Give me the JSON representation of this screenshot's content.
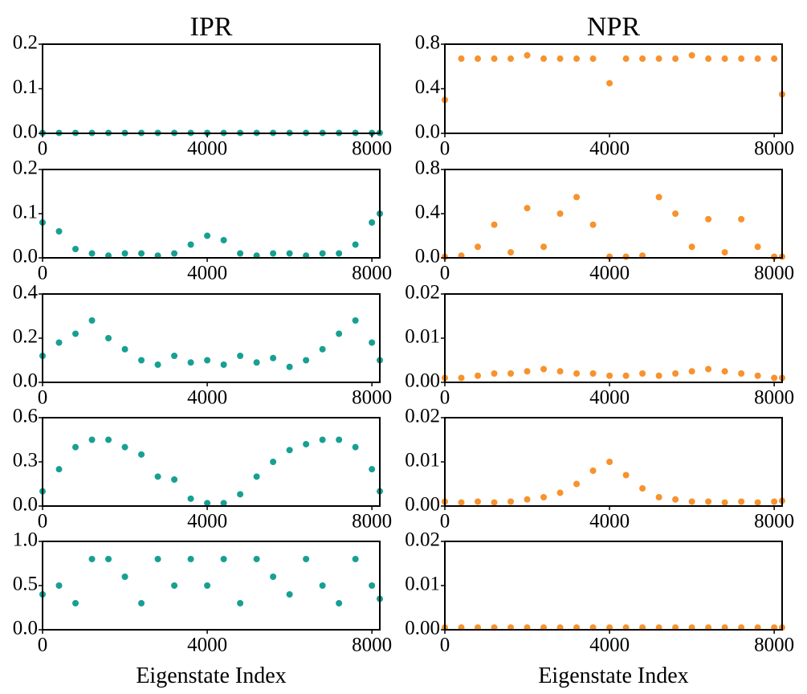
{
  "chart_data": [
    {
      "type": "scatter",
      "title": "IPR",
      "color": "#17a092",
      "xlim": [
        0,
        8192
      ],
      "xticks": [
        0,
        4000,
        8000
      ],
      "ylim": [
        0,
        0.2
      ],
      "yticks": [
        {
          "value": 0,
          "label": "0.0"
        },
        0.1,
        0.2
      ],
      "x": [
        0,
        400,
        800,
        1200,
        1600,
        2000,
        2400,
        2800,
        3200,
        3600,
        4000,
        4400,
        4800,
        5200,
        5600,
        6000,
        6400,
        6800,
        7200,
        7600,
        8000,
        8192
      ],
      "values": [
        0.001,
        0.001,
        0.001,
        0.001,
        0.001,
        0.001,
        0.001,
        0.001,
        0.001,
        0.001,
        0.001,
        0.001,
        0.001,
        0.001,
        0.001,
        0.001,
        0.001,
        0.001,
        0.001,
        0.001,
        0.001,
        0.001
      ]
    },
    {
      "type": "scatter",
      "title": "NPR",
      "color": "#f7922d",
      "xlim": [
        0,
        8192
      ],
      "xticks": [
        0,
        4000,
        8000
      ],
      "ylim": [
        0,
        0.8
      ],
      "yticks": [
        {
          "value": 0,
          "label": "0.0"
        },
        0.4,
        0.8
      ],
      "x": [
        0,
        400,
        800,
        1200,
        1600,
        2000,
        2400,
        2800,
        3200,
        3600,
        4000,
        4400,
        4800,
        5200,
        5600,
        6000,
        6400,
        6800,
        7200,
        7600,
        8000,
        8192
      ],
      "values": [
        0.3,
        0.67,
        0.67,
        0.67,
        0.67,
        0.7,
        0.67,
        0.67,
        0.67,
        0.67,
        0.45,
        0.67,
        0.67,
        0.67,
        0.67,
        0.7,
        0.67,
        0.67,
        0.67,
        0.67,
        0.67,
        0.35
      ]
    },
    {
      "type": "scatter",
      "color": "#17a092",
      "xlim": [
        0,
        8192
      ],
      "xticks": [
        0,
        4000,
        8000
      ],
      "ylim": [
        0,
        0.2
      ],
      "yticks": [
        {
          "value": 0,
          "label": "0.0"
        },
        0.1,
        0.2
      ],
      "x": [
        0,
        400,
        800,
        1200,
        1600,
        2000,
        2400,
        2800,
        3200,
        3600,
        4000,
        4400,
        4800,
        5200,
        5600,
        6000,
        6400,
        6800,
        7200,
        7600,
        8000,
        8192
      ],
      "values": [
        0.08,
        0.06,
        0.02,
        0.01,
        0.005,
        0.01,
        0.01,
        0.005,
        0.01,
        0.03,
        0.05,
        0.04,
        0.01,
        0.005,
        0.01,
        0.01,
        0.005,
        0.01,
        0.01,
        0.03,
        0.08,
        0.1
      ]
    },
    {
      "type": "scatter",
      "color": "#f7922d",
      "xlim": [
        0,
        8192
      ],
      "xticks": [
        0,
        4000,
        8000
      ],
      "ylim": [
        0,
        0.8
      ],
      "yticks": [
        {
          "value": 0,
          "label": "0.0"
        },
        0.4,
        0.8
      ],
      "x": [
        0,
        400,
        800,
        1200,
        1600,
        2000,
        2400,
        2800,
        3200,
        3600,
        4000,
        4400,
        4800,
        5200,
        5600,
        6000,
        6400,
        6800,
        7200,
        7600,
        8000,
        8192
      ],
      "values": [
        0.01,
        0.02,
        0.1,
        0.3,
        0.05,
        0.45,
        0.1,
        0.4,
        0.55,
        0.3,
        0.01,
        0.01,
        0.02,
        0.55,
        0.4,
        0.1,
        0.35,
        0.05,
        0.35,
        0.1,
        0.01,
        0.01
      ]
    },
    {
      "type": "scatter",
      "color": "#17a092",
      "xlim": [
        0,
        8192
      ],
      "xticks": [
        0,
        4000,
        8000
      ],
      "ylim": [
        0,
        0.4
      ],
      "yticks": [
        {
          "value": 0,
          "label": "0.0"
        },
        0.2,
        0.4
      ],
      "x": [
        0,
        400,
        800,
        1200,
        1600,
        2000,
        2400,
        2800,
        3200,
        3600,
        4000,
        4400,
        4800,
        5200,
        5600,
        6000,
        6400,
        6800,
        7200,
        7600,
        8000,
        8192
      ],
      "values": [
        0.12,
        0.18,
        0.22,
        0.28,
        0.2,
        0.15,
        0.1,
        0.08,
        0.12,
        0.09,
        0.1,
        0.08,
        0.12,
        0.09,
        0.11,
        0.07,
        0.1,
        0.15,
        0.22,
        0.28,
        0.18,
        0.1
      ]
    },
    {
      "type": "scatter",
      "color": "#f7922d",
      "xlim": [
        0,
        8192
      ],
      "xticks": [
        0,
        4000,
        8000
      ],
      "ylim": [
        0,
        0.02
      ],
      "yticks": [
        {
          "value": 0,
          "label": "0.00"
        },
        0.01,
        0.02
      ],
      "x": [
        0,
        400,
        800,
        1200,
        1600,
        2000,
        2400,
        2800,
        3200,
        3600,
        4000,
        4400,
        4800,
        5200,
        5600,
        6000,
        6400,
        6800,
        7200,
        7600,
        8000,
        8192
      ],
      "values": [
        0.001,
        0.001,
        0.0015,
        0.002,
        0.002,
        0.0025,
        0.003,
        0.0025,
        0.002,
        0.002,
        0.0015,
        0.0015,
        0.002,
        0.0015,
        0.002,
        0.0025,
        0.003,
        0.0025,
        0.002,
        0.0015,
        0.001,
        0.001
      ]
    },
    {
      "type": "scatter",
      "color": "#17a092",
      "xlim": [
        0,
        8192
      ],
      "xticks": [
        0,
        4000,
        8000
      ],
      "ylim": [
        0,
        0.6
      ],
      "yticks": [
        {
          "value": 0,
          "label": "0.0"
        },
        0.3,
        0.6
      ],
      "x": [
        0,
        400,
        800,
        1200,
        1600,
        2000,
        2400,
        2800,
        3200,
        3600,
        4000,
        4400,
        4800,
        5200,
        5600,
        6000,
        6400,
        6800,
        7200,
        7600,
        8000,
        8192
      ],
      "values": [
        0.1,
        0.25,
        0.4,
        0.45,
        0.45,
        0.4,
        0.35,
        0.2,
        0.18,
        0.05,
        0.02,
        0.02,
        0.08,
        0.2,
        0.3,
        0.38,
        0.42,
        0.45,
        0.45,
        0.4,
        0.25,
        0.1
      ]
    },
    {
      "type": "scatter",
      "color": "#f7922d",
      "xlim": [
        0,
        8192
      ],
      "xticks": [
        0,
        4000,
        8000
      ],
      "ylim": [
        0,
        0.02
      ],
      "yticks": [
        {
          "value": 0,
          "label": "0.00"
        },
        0.01,
        0.02
      ],
      "x": [
        0,
        400,
        800,
        1200,
        1600,
        2000,
        2400,
        2800,
        3200,
        3600,
        4000,
        4400,
        4800,
        5200,
        5600,
        6000,
        6400,
        6800,
        7200,
        7600,
        8000,
        8192
      ],
      "values": [
        0.001,
        0.0008,
        0.001,
        0.0008,
        0.001,
        0.0015,
        0.002,
        0.003,
        0.005,
        0.008,
        0.01,
        0.007,
        0.004,
        0.002,
        0.0015,
        0.001,
        0.001,
        0.0008,
        0.001,
        0.0008,
        0.001,
        0.0012
      ]
    },
    {
      "type": "scatter",
      "xlabel": "Eigenstate Index",
      "color": "#17a092",
      "xlim": [
        0,
        8192
      ],
      "xticks": [
        0,
        4000,
        8000
      ],
      "ylim": [
        0,
        1
      ],
      "yticks": [
        {
          "value": 0,
          "label": "0.0"
        },
        0.5,
        {
          "value": 1,
          "label": "1.0"
        }
      ],
      "x": [
        0,
        400,
        800,
        1200,
        1600,
        2000,
        2400,
        2800,
        3200,
        3600,
        4000,
        4400,
        4800,
        5200,
        5600,
        6000,
        6400,
        6800,
        7200,
        7600,
        8000,
        8192
      ],
      "values": [
        0.4,
        0.5,
        0.3,
        0.8,
        0.8,
        0.6,
        0.3,
        0.8,
        0.5,
        0.8,
        0.5,
        0.8,
        0.3,
        0.8,
        0.6,
        0.4,
        0.8,
        0.5,
        0.3,
        0.8,
        0.5,
        0.35
      ]
    },
    {
      "type": "scatter",
      "xlabel": "Eigenstate Index",
      "color": "#f7922d",
      "xlim": [
        0,
        8192
      ],
      "xticks": [
        0,
        4000,
        8000
      ],
      "ylim": [
        0,
        0.02
      ],
      "yticks": [
        {
          "value": 0,
          "label": "0.00"
        },
        0.01,
        0.02
      ],
      "x": [
        0,
        400,
        800,
        1200,
        1600,
        2000,
        2400,
        2800,
        3200,
        3600,
        4000,
        4400,
        4800,
        5200,
        5600,
        6000,
        6400,
        6800,
        7200,
        7600,
        8000,
        8192
      ],
      "values": [
        0.0005,
        0.0005,
        0.0005,
        0.0005,
        0.0005,
        0.0005,
        0.0005,
        0.0005,
        0.0005,
        0.0005,
        0.0005,
        0.0005,
        0.0005,
        0.0005,
        0.0005,
        0.0005,
        0.0005,
        0.0005,
        0.0005,
        0.0005,
        0.0005,
        0.0005
      ]
    }
  ]
}
